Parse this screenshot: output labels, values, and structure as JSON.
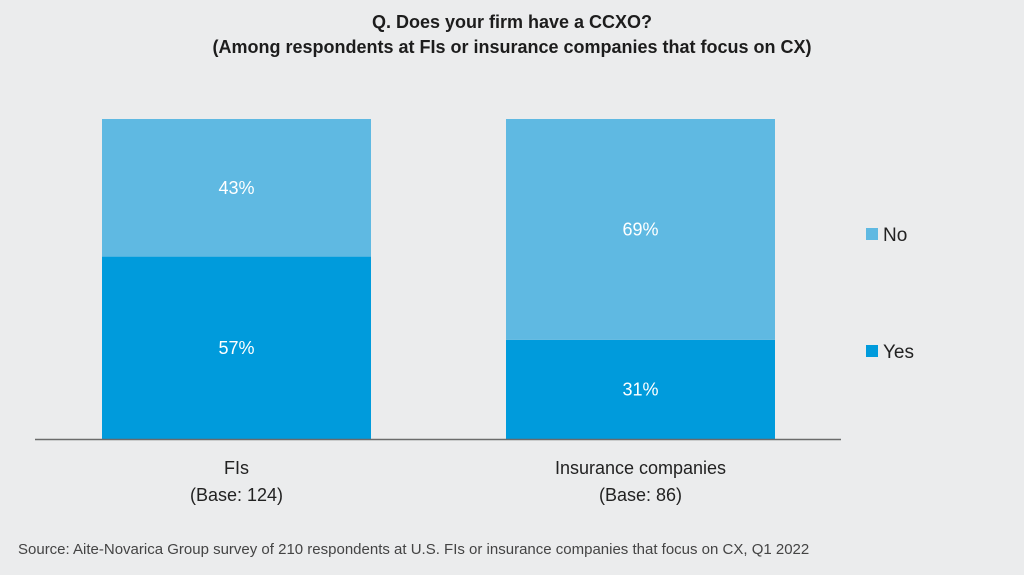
{
  "chart_data": {
    "type": "bar",
    "stacked": true,
    "percent": true,
    "title": "Q. Does your firm have a CCXO?",
    "subtitle": "(Among respondents at FIs or insurance companies that focus on CX)",
    "categories": [
      "FIs",
      "Insurance companies"
    ],
    "category_bases": [
      "(Base: 124)",
      "(Base: 86)"
    ],
    "series": [
      {
        "name": "Yes",
        "color": "#009bdc",
        "values": [
          57,
          31
        ]
      },
      {
        "name": "No",
        "color": "#5fb9e2",
        "values": [
          43,
          69
        ]
      }
    ],
    "ylim": [
      0,
      100
    ],
    "xlabel": "",
    "ylabel": "",
    "grid": false,
    "legend": "right",
    "legend_order": [
      "No",
      "Yes"
    ],
    "source": "Source: Aite-Novarica Group survey of 210  respondents at U.S. FIs or insurance companies that focus on CX, Q1 2022"
  }
}
